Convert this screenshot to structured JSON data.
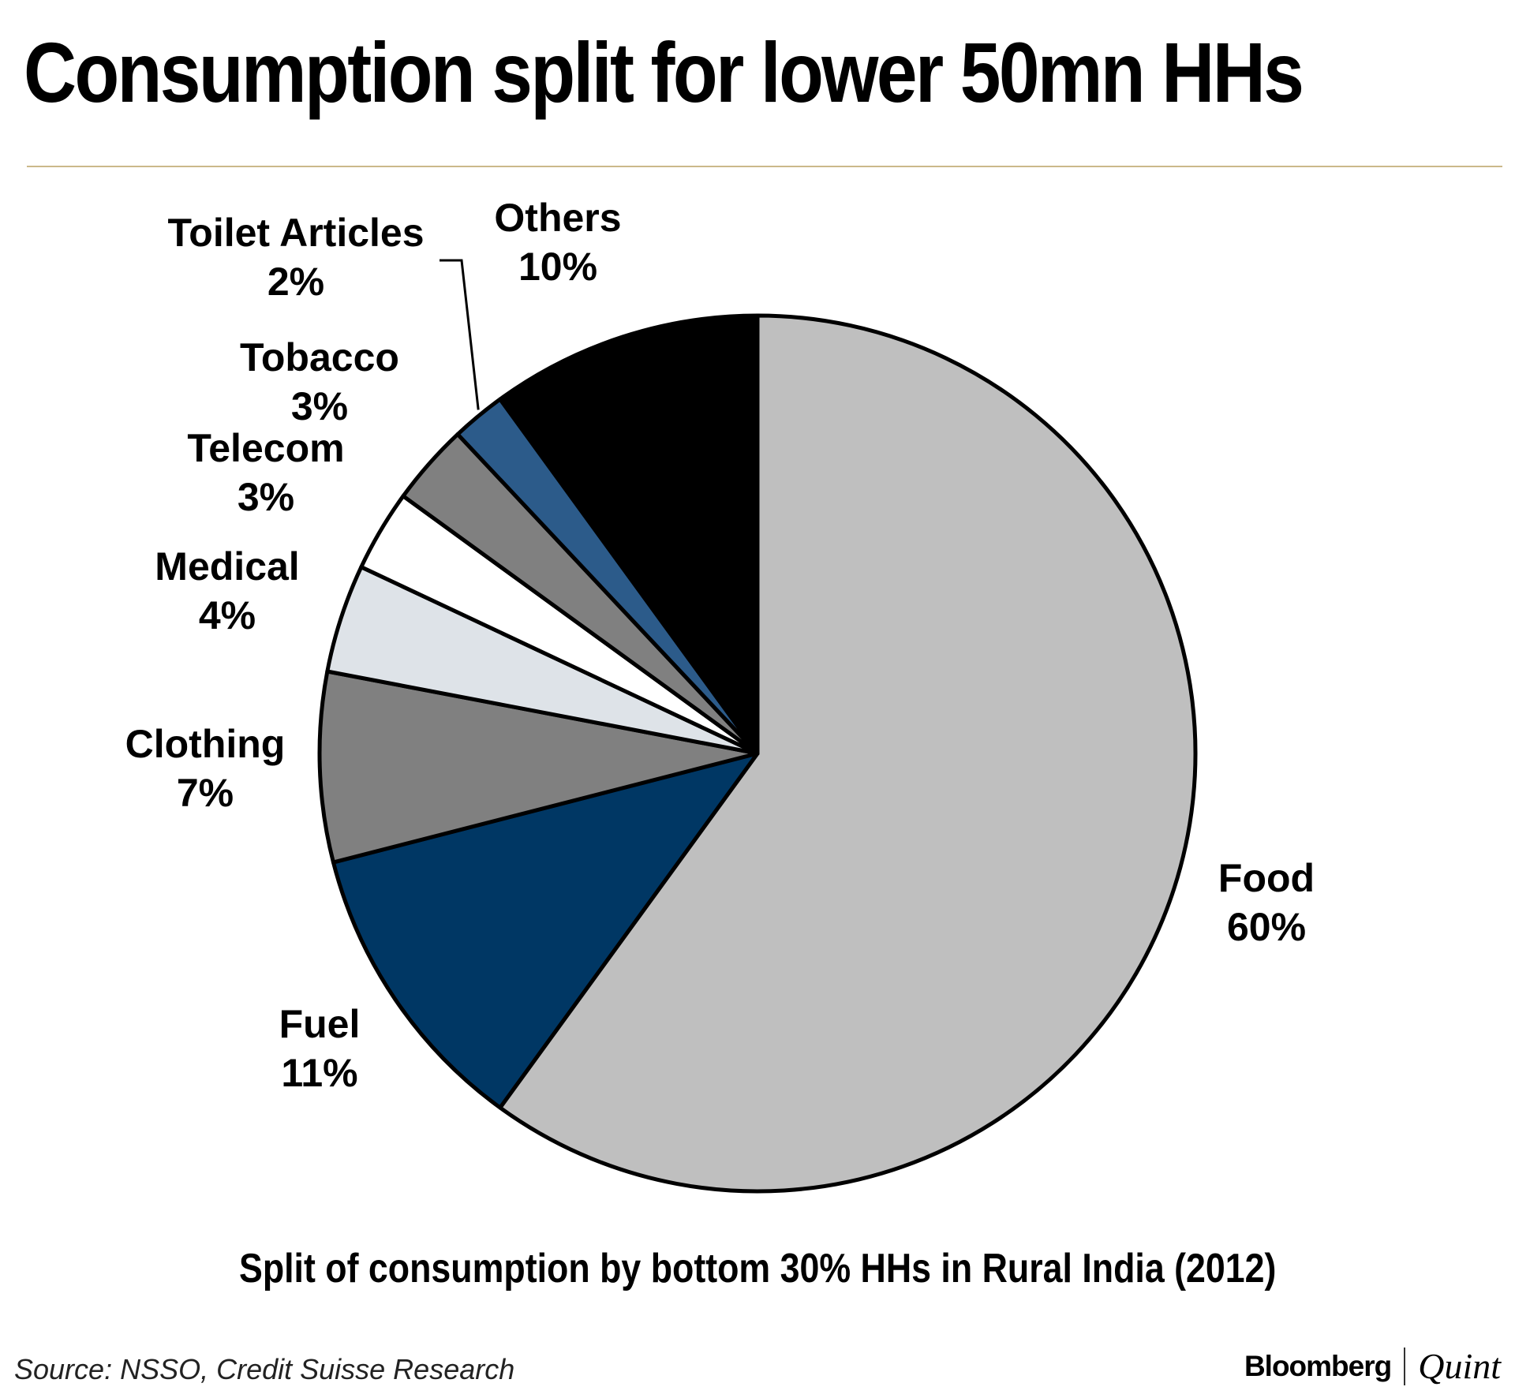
{
  "header": {
    "title": "Consumption split for lower 50mn HHs"
  },
  "chart_data": {
    "type": "pie",
    "title": "Consumption split for lower 50mn HHs",
    "subtitle": "Split of consumption by bottom 30% HHs in Rural India (2012)",
    "unit": "%",
    "slices": [
      {
        "label": "Food",
        "value": 60,
        "value_label": "60%",
        "color": "#bfbfbf"
      },
      {
        "label": "Fuel",
        "value": 11,
        "value_label": "11%",
        "color": "#003764"
      },
      {
        "label": "Clothing",
        "value": 7,
        "value_label": "7%",
        "color": "#808080"
      },
      {
        "label": "Medical",
        "value": 4,
        "value_label": "4%",
        "color": "#dee3e8"
      },
      {
        "label": "Telecom",
        "value": 3,
        "value_label": "3%",
        "color": "#ffffff"
      },
      {
        "label": "Tobacco",
        "value": 3,
        "value_label": "3%",
        "color": "#808080"
      },
      {
        "label": "Toilet Articles",
        "value": 2,
        "value_label": "2%",
        "color": "#2c5b8a"
      },
      {
        "label": "Others",
        "value": 10,
        "value_label": "10%",
        "color": "#000000"
      }
    ],
    "start": "12 o'clock, clockwise",
    "legend": "none (direct labels)"
  },
  "footer": {
    "source": "Source: NSSO, Credit Suisse Research",
    "brand_primary": "Bloomberg",
    "brand_secondary": "Quint"
  }
}
